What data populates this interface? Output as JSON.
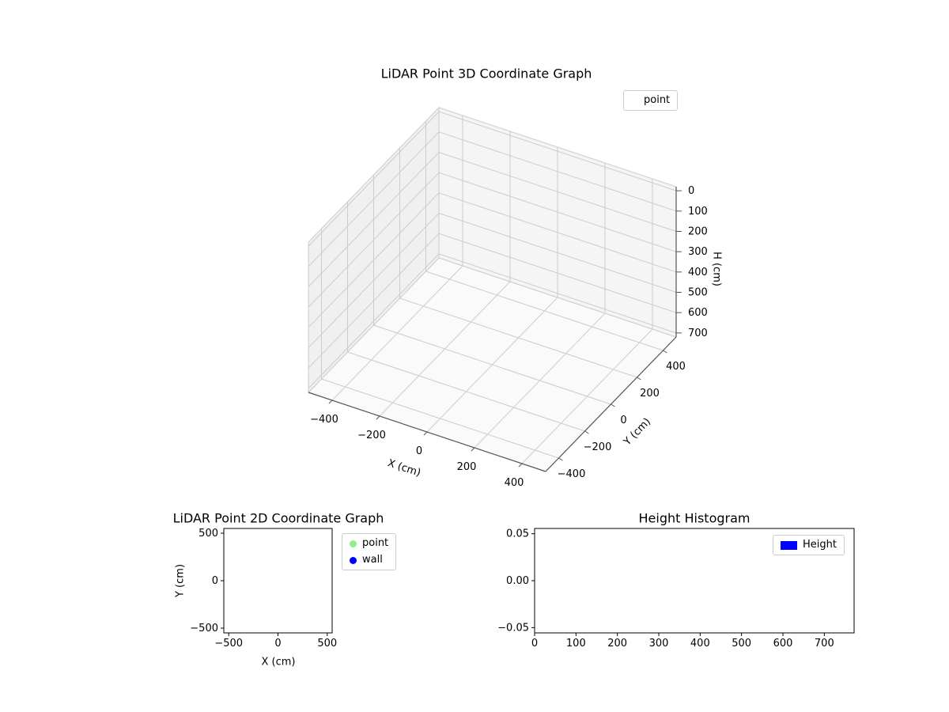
{
  "figure": {
    "background": "#ffffff",
    "text_color": "#000000",
    "grid_color": "#cccccc",
    "axis_line_color": "#555555",
    "spine_color": "#000000",
    "pane_left_color": "#f0f0f0",
    "pane_right_color": "#f5f5f5",
    "pane_floor_color": "#fafafa"
  },
  "chart_data": [
    {
      "type": "scatter",
      "projection": "3d",
      "title": "LiDAR Point 3D Coordinate Graph",
      "xlabel": "X (cm)",
      "ylabel": "Y (cm)",
      "zlabel": "H (cm)",
      "x_ticks": [
        -400,
        -200,
        0,
        200,
        400
      ],
      "y_ticks": [
        -400,
        -200,
        0,
        200,
        400
      ],
      "z_ticks": [
        0,
        100,
        200,
        300,
        400,
        500,
        600,
        700
      ],
      "x_range": [
        -500,
        500
      ],
      "y_range": [
        -500,
        500
      ],
      "z_range": [
        -20,
        720
      ],
      "z_axis_inverted": true,
      "grid": true,
      "legend": [
        {
          "label": "point",
          "marker": "circle",
          "marker_color": "#ffffff"
        }
      ],
      "series": [
        {
          "name": "point",
          "points": []
        }
      ]
    },
    {
      "type": "scatter",
      "projection": "2d",
      "title": "LiDAR Point 2D Coordinate Graph",
      "xlabel": "X (cm)",
      "ylabel": "Y (cm)",
      "x_ticks": [
        -500,
        0,
        500
      ],
      "y_ticks": [
        -500,
        0,
        500
      ],
      "x_range": [
        -550,
        550
      ],
      "y_range": [
        -550,
        550
      ],
      "grid": false,
      "legend": [
        {
          "label": "point",
          "marker": "circle",
          "marker_color": "#90ee90"
        },
        {
          "label": "wall",
          "marker": "circle",
          "marker_color": "#0000ff"
        }
      ],
      "series": [
        {
          "name": "point",
          "points": []
        },
        {
          "name": "wall",
          "points": []
        }
      ]
    },
    {
      "type": "bar",
      "title": "Height Histogram",
      "xlabel": "",
      "ylabel": "",
      "x_ticks": [
        0,
        100,
        200,
        300,
        400,
        500,
        600,
        700
      ],
      "y_ticks": [
        -0.05,
        0,
        0.05
      ],
      "y_tick_decimals": 2,
      "x_range": [
        0,
        772
      ],
      "y_range": [
        -0.0556,
        0.0556
      ],
      "grid": false,
      "legend": [
        {
          "label": "Height",
          "marker": "rect",
          "marker_color": "#0000ff"
        }
      ],
      "values": []
    }
  ]
}
